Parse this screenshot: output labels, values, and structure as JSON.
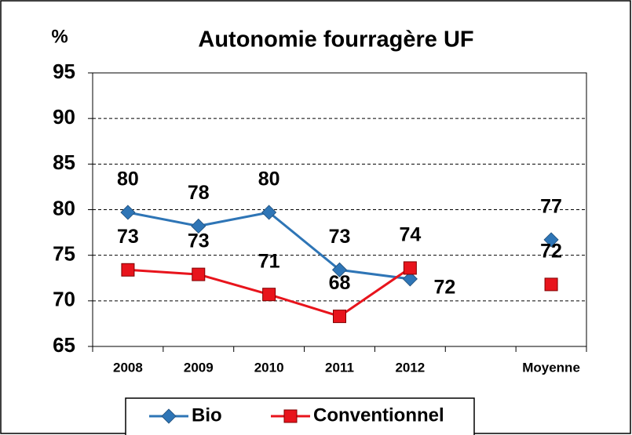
{
  "chart_data": {
    "type": "line",
    "title": "Autonomie fourragère UF",
    "y_label": "%",
    "categories": [
      "2008",
      "2009",
      "2010",
      "2011",
      "2012",
      null,
      "Moyenne"
    ],
    "series": [
      {
        "name": "Bio",
        "color": "#2e75b6",
        "marker": "diamond",
        "values": [
          79.7,
          78.2,
          79.7,
          73.4,
          72.4,
          null,
          76.7
        ],
        "value_labels": [
          "80",
          "78",
          "80",
          "73",
          "72",
          null,
          "77"
        ]
      },
      {
        "name": "Conventionnel",
        "color": "#e8141c",
        "marker": "square",
        "values": [
          73.4,
          72.9,
          70.7,
          68.3,
          73.6,
          null,
          71.8
        ],
        "value_labels": [
          "73",
          "73",
          "71",
          "68",
          "74",
          null,
          "72"
        ]
      }
    ],
    "ylim": [
      65,
      95
    ],
    "yticks": [
      65,
      70,
      75,
      80,
      85,
      90,
      95
    ],
    "grid": true,
    "legend": "bottom"
  }
}
